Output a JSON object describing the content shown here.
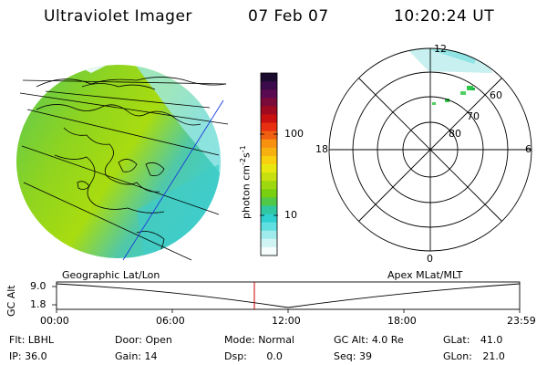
{
  "header": {
    "instrument": "Ultraviolet Imager",
    "date": "07 Feb 07",
    "time": "10:20:24 UT"
  },
  "colorbar": {
    "unit_label": "photon cm",
    "unit_sup1": "-2",
    "unit_s": "s",
    "unit_sup2": "-1",
    "ticks": [
      "100",
      "10"
    ],
    "colors": [
      "#1a0a2e",
      "#3a0a4a",
      "#5a0a50",
      "#7a0a3a",
      "#a00a20",
      "#c81010",
      "#e83010",
      "#f06010",
      "#f89010",
      "#f8b010",
      "#f8d010",
      "#e8e810",
      "#c8e010",
      "#a0d810",
      "#78d010",
      "#50c848",
      "#30c8a0",
      "#30d0d0",
      "#60e0e0",
      "#a0ecec",
      "#d0f4f4",
      "#f4fcfc"
    ]
  },
  "polar": {
    "mlt_labels": {
      "top": "12",
      "left": "18",
      "right": "6",
      "bottom": "0"
    },
    "lat_labels": [
      "60",
      "70",
      "80"
    ]
  },
  "timeline": {
    "left_title": "Geographic Lat/Lon",
    "right_title": "Apex  MLat/MLT",
    "axis_label": "GC Alt",
    "y_top": "9.0",
    "y_bottom": "1.8",
    "time_ticks": [
      "00:00",
      "06:00",
      "12:00",
      "18:00",
      "23:59"
    ]
  },
  "info": {
    "flt_label": "Flt:",
    "flt_value": "LBHL",
    "ip_label": "IP:",
    "ip_value": "36.0",
    "door_label": "Door:",
    "door_value": "Open",
    "gain_label": "Gain:",
    "gain_value": "14",
    "mode_label": "Mode:",
    "mode_value": "Normal",
    "dsp_label": "Dsp:",
    "dsp_value": "0.0",
    "gcalt_label": "GC Alt:",
    "gcalt_value": "4.0 Re",
    "seq_label": "Seq:",
    "seq_value": "39",
    "glat_label": "GLat:",
    "glat_value": "41.0",
    "glon_label": "GLon:",
    "glon_value": "21.0"
  }
}
